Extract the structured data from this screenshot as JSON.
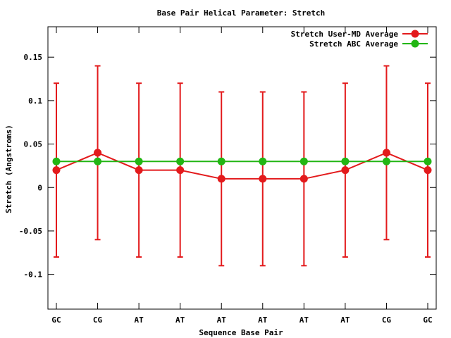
{
  "chart_data": {
    "type": "line",
    "title": "Base Pair Helical Parameter: Stretch",
    "xlabel": "Sequence Base Pair",
    "ylabel": "Stretch (Angstroms)",
    "categories": [
      "GC",
      "CG",
      "AT",
      "AT",
      "AT",
      "AT",
      "AT",
      "AT",
      "CG",
      "GC"
    ],
    "ylim": [
      -0.14,
      0.185
    ],
    "yticks": [
      {
        "value": 0.15,
        "label": "0.15"
      },
      {
        "value": 0.1,
        "label": "0.1"
      },
      {
        "value": 0.05,
        "label": "0.05"
      },
      {
        "value": 0,
        "label": "0"
      },
      {
        "value": -0.05,
        "label": "-0.05"
      },
      {
        "value": -0.1,
        "label": "-0.1"
      }
    ],
    "grid": false,
    "legend_position": "top-right",
    "series": [
      {
        "name": "Stretch User-MD Average",
        "color": "#e31a1c",
        "values": [
          0.02,
          0.04,
          0.02,
          0.02,
          0.01,
          0.01,
          0.01,
          0.02,
          0.04,
          0.02
        ],
        "error_low": [
          -0.08,
          -0.06,
          -0.08,
          -0.08,
          -0.09,
          -0.09,
          -0.09,
          -0.08,
          -0.06,
          -0.08
        ],
        "error_high": [
          0.12,
          0.14,
          0.12,
          0.12,
          0.11,
          0.11,
          0.11,
          0.12,
          0.14,
          0.12
        ]
      },
      {
        "name": "Stretch ABC Average",
        "color": "#22b614",
        "values": [
          0.03,
          0.03,
          0.03,
          0.03,
          0.03,
          0.03,
          0.03,
          0.03,
          0.03,
          0.03
        ]
      }
    ]
  }
}
